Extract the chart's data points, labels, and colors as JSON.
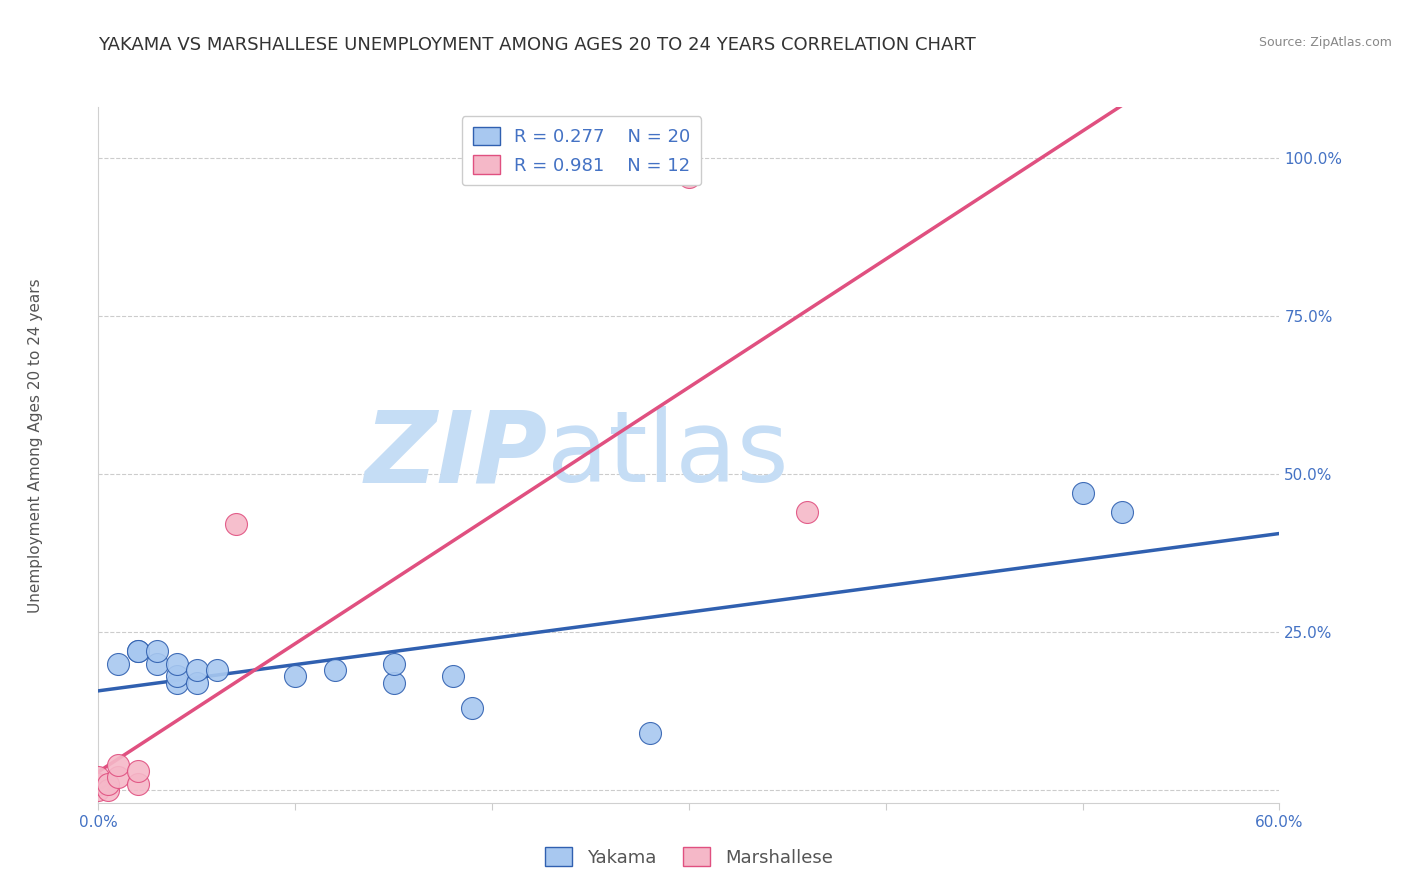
{
  "title": "YAKAMA VS MARSHALLESE UNEMPLOYMENT AMONG AGES 20 TO 24 YEARS CORRELATION CHART",
  "source": "Source: ZipAtlas.com",
  "xlabel": "",
  "ylabel": "Unemployment Among Ages 20 to 24 years",
  "xlim": [
    0.0,
    0.6
  ],
  "ylim": [
    -0.02,
    1.08
  ],
  "xticks": [
    0.0,
    0.1,
    0.2,
    0.3,
    0.4,
    0.5,
    0.6
  ],
  "ytick_positions": [
    0.0,
    0.25,
    0.5,
    0.75,
    1.0
  ],
  "ytick_labels": [
    "",
    "25.0%",
    "50.0%",
    "75.0%",
    "100.0%"
  ],
  "yakama_x": [
    0.01,
    0.02,
    0.02,
    0.03,
    0.03,
    0.04,
    0.04,
    0.04,
    0.05,
    0.05,
    0.06,
    0.1,
    0.12,
    0.15,
    0.15,
    0.18,
    0.19,
    0.28,
    0.5,
    0.52
  ],
  "yakama_y": [
    0.2,
    0.22,
    0.22,
    0.2,
    0.22,
    0.17,
    0.18,
    0.2,
    0.17,
    0.19,
    0.19,
    0.18,
    0.19,
    0.17,
    0.2,
    0.18,
    0.13,
    0.09,
    0.47,
    0.44
  ],
  "marshallese_x": [
    0.0,
    0.0,
    0.0,
    0.005,
    0.005,
    0.01,
    0.01,
    0.02,
    0.02,
    0.07,
    0.3,
    0.36
  ],
  "marshallese_y": [
    0.0,
    0.01,
    0.02,
    0.0,
    0.01,
    0.02,
    0.04,
    0.01,
    0.03,
    0.42,
    0.97,
    0.44
  ],
  "yakama_color": "#a8c8f0",
  "marshallese_color": "#f5b8c8",
  "yakama_line_color": "#3060b0",
  "marshallese_line_color": "#e05080",
  "yakama_R": 0.277,
  "yakama_N": 20,
  "marshallese_R": 0.981,
  "marshallese_N": 12,
  "legend_text_color": "#4472C4",
  "watermark_zip": "ZIP",
  "watermark_atlas": "atlas",
  "watermark_color_zip": "#c5ddf5",
  "watermark_color_atlas": "#c5ddf5",
  "grid_color": "#cccccc",
  "background_color": "#ffffff",
  "title_fontsize": 13,
  "axis_label_fontsize": 11,
  "tick_label_fontsize": 11,
  "legend_fontsize": 13
}
